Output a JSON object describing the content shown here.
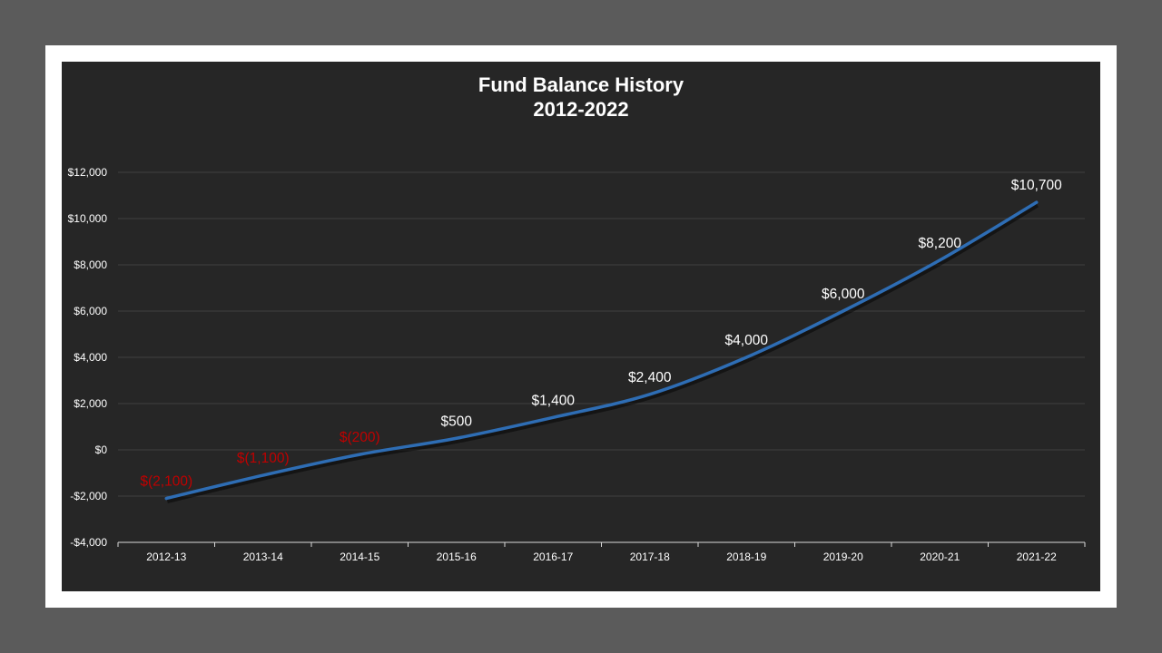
{
  "chart_data": {
    "type": "line",
    "title_line1": "Fund Balance History",
    "title_line2": "2012-2022",
    "categories": [
      "2012-13",
      "2013-14",
      "2014-15",
      "2015-16",
      "2016-17",
      "2017-18",
      "2018-19",
      "2019-20",
      "2020-21",
      "2021-22"
    ],
    "series": [
      {
        "values": [
          -2100,
          -1100,
          -200,
          500,
          1400,
          2400,
          4000,
          6000,
          8200,
          10700
        ]
      }
    ],
    "data_labels": [
      "$(2,100)",
      "$(1,100)",
      "$(200)",
      "$500",
      "$1,400",
      "$2,400",
      "$4,000",
      "$6,000",
      "$8,200",
      "$10,700"
    ],
    "ylim": [
      -4000,
      12000
    ],
    "yticks": [
      -4000,
      -2000,
      0,
      2000,
      4000,
      6000,
      8000,
      10000,
      12000
    ],
    "ytick_labels": [
      "-$4,000",
      "-$2,000",
      "$0",
      "$2,000",
      "$4,000",
      "$6,000",
      "$8,000",
      "$10,000",
      "$12,000"
    ],
    "grid": true,
    "colors": {
      "line": "#2e6db4",
      "positive_label": "#ffffff",
      "negative_label": "#c00000",
      "grid": "#404040",
      "background": "#262626"
    }
  }
}
